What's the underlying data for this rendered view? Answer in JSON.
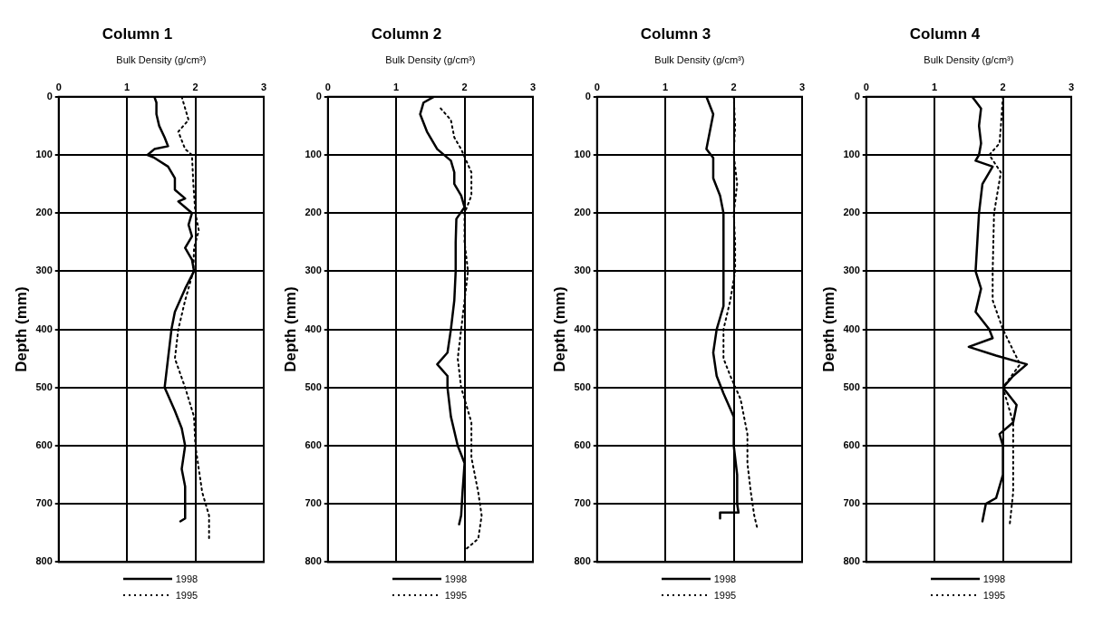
{
  "chart_data": [
    {
      "type": "line",
      "title": "Column 1",
      "xlabel": "Bulk Density (g/cm³)",
      "ylabel": "Depth (mm)",
      "xlim": [
        0,
        3
      ],
      "xticks": [
        0,
        1,
        2,
        3
      ],
      "ylim": [
        800,
        0
      ],
      "yticks": [
        0,
        100,
        200,
        300,
        400,
        500,
        600,
        700,
        800
      ],
      "grid": true,
      "legend": "bottom",
      "marker": "none",
      "series": [
        {
          "name": "1998",
          "color": "#000000",
          "line_style": "solid",
          "x": [
            1.4,
            1.43,
            1.43,
            1.47,
            1.55,
            1.6,
            1.4,
            1.3,
            1.4,
            1.6,
            1.7,
            1.7,
            1.85,
            1.75,
            1.85,
            1.95,
            1.9,
            1.95,
            1.85,
            1.95,
            1.98,
            1.85,
            1.7,
            1.65,
            1.6,
            1.55,
            1.7,
            1.8,
            1.85,
            1.8,
            1.85,
            1.85,
            1.78
          ],
          "values": [
            0,
            10,
            30,
            50,
            70,
            85,
            90,
            100,
            105,
            120,
            140,
            160,
            175,
            180,
            190,
            200,
            220,
            240,
            260,
            280,
            300,
            330,
            370,
            400,
            450,
            500,
            540,
            570,
            600,
            640,
            670,
            725,
            730
          ]
        },
        {
          "name": "1995",
          "color": "#000000",
          "line_style": "dotted",
          "x": [
            1.8,
            1.85,
            1.9,
            1.75,
            1.8,
            1.85,
            1.95,
            1.97,
            2.0,
            2.05,
            1.98,
            1.97,
            1.85,
            1.75,
            1.7,
            1.85,
            1.98,
            2.0,
            2.05,
            2.1,
            2.2,
            2.2
          ],
          "values": [
            0,
            20,
            40,
            60,
            75,
            90,
            100,
            150,
            200,
            230,
            260,
            300,
            350,
            400,
            450,
            500,
            550,
            600,
            640,
            680,
            720,
            760
          ]
        }
      ]
    },
    {
      "type": "line",
      "title": "Column 2",
      "xlabel": "Bulk Density (g/cm³)",
      "ylabel": "Depth (mm)",
      "xlim": [
        0,
        3
      ],
      "xticks": [
        0,
        1,
        2,
        3
      ],
      "ylim": [
        800,
        0
      ],
      "yticks": [
        0,
        100,
        200,
        300,
        400,
        500,
        600,
        700,
        800
      ],
      "grid": true,
      "legend": "bottom",
      "marker": "none",
      "series": [
        {
          "name": "1998",
          "color": "#000000",
          "line_style": "solid",
          "x": [
            1.55,
            1.4,
            1.35,
            1.45,
            1.6,
            1.8,
            1.85,
            1.85,
            1.95,
            2.0,
            1.88,
            1.87,
            1.87,
            1.85,
            1.8,
            1.75,
            1.6,
            1.75,
            1.75,
            1.8,
            1.9,
            2.0,
            1.97,
            1.95,
            1.92
          ],
          "values": [
            0,
            10,
            30,
            60,
            90,
            110,
            130,
            150,
            170,
            190,
            210,
            250,
            300,
            350,
            400,
            440,
            460,
            480,
            500,
            550,
            600,
            630,
            680,
            720,
            735
          ]
        },
        {
          "name": "1995",
          "color": "#000000",
          "line_style": "dotted",
          "x": [
            1.65,
            1.8,
            1.85,
            1.95,
            2.1,
            2.1,
            2.0,
            2.0,
            2.05,
            2.0,
            1.95,
            1.9,
            1.95,
            2.1,
            2.1,
            2.2,
            2.25,
            2.2,
            2.0
          ],
          "values": [
            20,
            40,
            70,
            90,
            130,
            170,
            200,
            250,
            300,
            350,
            400,
            450,
            500,
            560,
            620,
            680,
            720,
            760,
            780
          ]
        }
      ]
    },
    {
      "type": "line",
      "title": "Column 3",
      "xlabel": "Bulk Density (g/cm³)",
      "ylabel": "Depth (mm)",
      "xlim": [
        0,
        3
      ],
      "xticks": [
        0,
        1,
        2,
        3
      ],
      "ylim": [
        800,
        0
      ],
      "yticks": [
        0,
        100,
        200,
        300,
        400,
        500,
        600,
        700,
        800
      ],
      "grid": true,
      "legend": "bottom",
      "marker": "none",
      "series": [
        {
          "name": "1998",
          "color": "#000000",
          "line_style": "solid",
          "x": [
            1.6,
            1.7,
            1.65,
            1.6,
            1.7,
            1.7,
            1.8,
            1.85,
            1.85,
            1.8,
            1.75,
            1.7,
            1.75,
            1.85,
            2.0,
            2.0,
            2.05,
            2.05,
            2.07,
            1.8,
            1.8
          ],
          "values": [
            0,
            30,
            60,
            90,
            105,
            140,
            170,
            200,
            360,
            380,
            400,
            440,
            480,
            510,
            550,
            600,
            650,
            700,
            715,
            715,
            725
          ]
        },
        {
          "name": "1995",
          "color": "#000000",
          "line_style": "dotted",
          "x": [
            2.0,
            2.02,
            2.0,
            2.05,
            2.0,
            2.02,
            2.02,
            1.95,
            1.85,
            1.85,
            1.95,
            2.1,
            2.2,
            2.2,
            2.25,
            2.3,
            2.35
          ],
          "values": [
            0,
            50,
            100,
            150,
            200,
            250,
            300,
            350,
            400,
            450,
            480,
            520,
            580,
            630,
            680,
            720,
            745
          ]
        }
      ]
    },
    {
      "type": "line",
      "title": "Column 4",
      "xlabel": "Bulk Density (g/cm³)",
      "ylabel": "Depth (mm)",
      "xlim": [
        0,
        3
      ],
      "xticks": [
        0,
        1,
        2,
        3
      ],
      "ylim": [
        800,
        0
      ],
      "yticks": [
        0,
        100,
        200,
        300,
        400,
        500,
        600,
        700,
        800
      ],
      "grid": true,
      "legend": "bottom",
      "marker": "none",
      "series": [
        {
          "name": "1998",
          "color": "#000000",
          "line_style": "solid",
          "x": [
            1.55,
            1.68,
            1.65,
            1.68,
            1.65,
            1.6,
            1.85,
            1.7,
            1.65,
            1.6,
            1.68,
            1.6,
            1.8,
            1.85,
            1.5,
            1.9,
            2.35,
            2.15,
            2.0,
            2.2,
            2.15,
            1.95,
            2.0,
            2.0,
            1.9,
            1.75,
            1.7
          ],
          "values": [
            0,
            20,
            50,
            80,
            100,
            110,
            120,
            150,
            200,
            300,
            330,
            370,
            400,
            415,
            430,
            445,
            460,
            480,
            500,
            530,
            560,
            580,
            600,
            650,
            690,
            700,
            730
          ]
        },
        {
          "name": "1995",
          "color": "#000000",
          "line_style": "dotted",
          "x": [
            2.0,
            1.97,
            1.95,
            1.8,
            1.97,
            1.87,
            1.85,
            1.85,
            2.0,
            2.25,
            2.0,
            2.15,
            2.15,
            2.15,
            2.1
          ],
          "values": [
            0,
            50,
            80,
            100,
            130,
            200,
            300,
            350,
            400,
            460,
            500,
            560,
            620,
            680,
            735
          ]
        }
      ]
    }
  ]
}
